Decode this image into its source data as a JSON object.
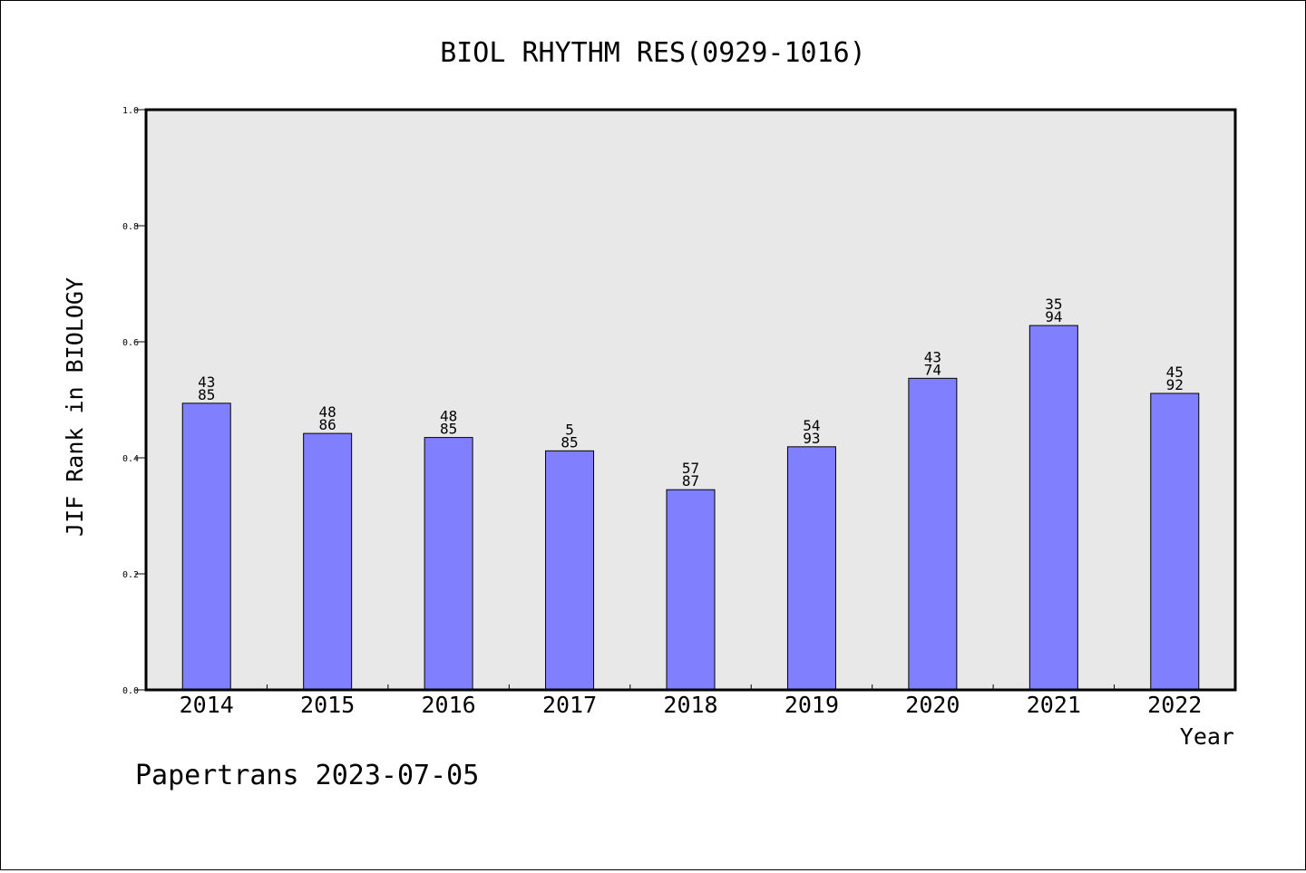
{
  "chart_data": {
    "type": "bar",
    "title": "BIOL RHYTHM RES(0929-1016)",
    "xlabel": "Year",
    "ylabel": "JIF Rank in BIOLOGY",
    "categories": [
      "2014",
      "2015",
      "2016",
      "2017",
      "2018",
      "2019",
      "2020",
      "2021",
      "2022"
    ],
    "values": [
      0.494,
      0.442,
      0.435,
      0.412,
      0.345,
      0.419,
      0.537,
      0.628,
      0.511
    ],
    "labels_top": [
      "43",
      "48",
      "48",
      "5",
      "57",
      "54",
      "43",
      "35",
      "45"
    ],
    "labels_bottom": [
      "85",
      "86",
      "85",
      "85",
      "87",
      "93",
      "74",
      "94",
      "92"
    ],
    "ylim": [
      0.0,
      1.0
    ],
    "yticks": [
      "0.0",
      "0.2",
      "0.4",
      "0.6",
      "0.8",
      "1.0"
    ],
    "grid": false,
    "legend": "none",
    "colors": {
      "bar_fill": "#8080ff",
      "plot_background": "#e8e8e8",
      "axis": "#000000"
    }
  },
  "footer": {
    "watermark": "Papertrans 2023-07-05"
  }
}
